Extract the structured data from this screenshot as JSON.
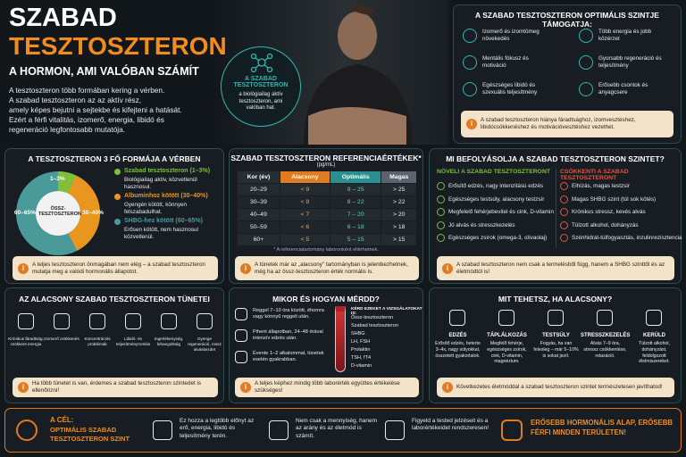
{
  "header": {
    "title1": "SZABAD",
    "title2": "TESZTOSZTERON",
    "subtitle": "A HORMON, AMI VALÓBAN SZÁMÍT",
    "intro": [
      "A tesztoszteron több formában kering a vérben.",
      "A szabad tesztoszteron az az aktív rész,",
      "amely képes bejutni a sejtekbe és kifejteni a hatását.",
      "Ezért a férfi vitalitás, izomerő, energia, libidó és",
      "regeneráció legfontosabb mutatója."
    ]
  },
  "badge": {
    "title": "A SZABAD TESZTOSZTERON",
    "text": "a biológiailag aktív tesztoszteron, ami valóban hat."
  },
  "support": {
    "title": "A SZABAD TESZTOSZTERON OPTIMÁLIS SZINTJE TÁMOGATJA:",
    "items": [
      "Izomerő és izomtömeg növekedés",
      "Több energia és jobb közérzet",
      "Mentális fókusz és motiváció",
      "Gyorsabb regeneráció és teljesítmény",
      "Egészséges libidó és szexuális teljesítmény",
      "Erősebb csontok és anyagcsere"
    ],
    "note": "A szabad tesztoszteron hiánya fáradtsághoz, izomvesztéshez, libidócsökkenéshez és motivációvesztéshez vezethet."
  },
  "forms": {
    "title": "A TESZTOSZTERON 3 FŐ FORMÁJA A VÉRBEN",
    "center": "ÖSSZ-TESZTOSZTERON",
    "segment_labels": [
      "1–3%",
      "30–40%",
      "60–65%"
    ],
    "legend": [
      {
        "name": "Szabad tesztoszteron (1–3%)",
        "text": "Biológiailag aktív, közvetlenül hasznosul."
      },
      {
        "name": "Albuminhoz kötött (30–40%)",
        "text": "Gyengén kötött, könnyen felszabadulhat."
      },
      {
        "name": "SHBG-hez kötött (60–65%)",
        "text": "Erősen kötött, nem hasznosul közvetlenül."
      }
    ],
    "note": "A teljes tesztoszteron önmagában nem elég – a szabad tesztoszteron mutatja meg a valódi hormonális állapotot."
  },
  "reference": {
    "title": "SZABAD TESZTOSZTERON REFERENCIAÉRTÉKEK*",
    "unit": "(pg/mL)",
    "headers": [
      "Kor (év)",
      "Alacsony",
      "Optimális",
      "Magas"
    ],
    "rows": [
      [
        "20–29",
        "< 9",
        "9 – 25",
        "> 25"
      ],
      [
        "30–39",
        "< 8",
        "8 – 22",
        "> 22"
      ],
      [
        "40–49",
        "< 7",
        "7 – 20",
        "> 20"
      ],
      [
        "50–59",
        "< 6",
        "6 – 18",
        "> 18"
      ],
      [
        "60+",
        "< 5",
        "5 – 15",
        "> 15"
      ]
    ],
    "footnote": "* A referenciatartomány laboronként eltérhetnek.",
    "note": "A tünetek már az „alacsony” tartományban is jelentkezhetnek, még ha az össz-tesztoszteron érték normális is."
  },
  "influence": {
    "title": "MI BEFOLYÁSOLJA A SZABAD TESZTOSZTERON SZINTET?",
    "increase_title": "NÖVELI A SZABAD TESZTOSZTERONT",
    "increase": [
      "Erősítő edzés, nagy intenzitású edzés",
      "Egészséges testsúly, alacsony testzsír",
      "Megfelelő fehérjebevitel és cink, D-vitamin",
      "Jó alvás és stresszkezelés",
      "Egészséges zsírok (omega-3, olívaolaj)"
    ],
    "decrease_title": "CSÖKKENTI A SZABAD TESZTOSZTERONT",
    "decrease": [
      "Elhízás, magas testzsír",
      "Magas SHBG szint (túl sok kötés)",
      "Krónikus stressz, kevés alvás",
      "Túlzott alkohol, dohányzás",
      "Szénhidrát-túlfogyasztás, inzulinrezisztencia"
    ],
    "note": "A szabad tesztoszteron nem csak a termelésből függ, hanem a SHBG szinttől és az életmódtól is!"
  },
  "symptoms": {
    "title": "AZ ALACSONY SZABAD TESZTOSZTERON TÜNETEI",
    "items": [
      "Krónikus fáradtság, csökkent energia",
      "Izomerő csökkenés",
      "Koncentrációs problémák",
      "Libidó- és teljesítményromlás",
      "Ingerlékenység, lehangoltság",
      "Gyenge regeneráció, rossz alváskezdet"
    ],
    "note": "Ha több tünetet is van, érdemes a szabad tesztoszteron szintedet is ellenőrizni!"
  },
  "measure": {
    "title": "MIKOR ÉS HOGYAN MÉRDD?",
    "items": [
      "Reggel 7–10 óra között, éhomra vagy könnyű reggeli után.",
      "Pihent állapotban, 24–48 órával intenzív edzés után.",
      "Évente 1–2 alkalommal, tünetek esetén gyakrabban."
    ],
    "tests_title": "KÉRD EZEKET A VIZSGÁLATOKAT IS:",
    "tests": [
      "Össz-tesztoszteron",
      "Szabad tesztoszteron",
      "SHBG",
      "LH, FSH",
      "Prolaktin",
      "TSH, fT4",
      "D-vitamin"
    ],
    "note": "A teljes képhez mindig több laborérték együttes értékelése szükséges!"
  },
  "actions": {
    "title": "MIT TEHETSZ, HA ALACSONY?",
    "items": [
      {
        "title": "EDZÉS",
        "text": "Erősítő edzés, heterte 3–4x, nagy súlyokkal, összetett gyakorlatok."
      },
      {
        "title": "TÁPLÁLKOZÁS",
        "text": "Megfelő fehérje, egészséges zsírok, cink, D-vitamin, magnézium."
      },
      {
        "title": "TESTSÚLY",
        "text": "Fogyás, ha van felesleg – már 5–10% is sokat javít."
      },
      {
        "title": "STRESSZKEZELÉS",
        "text": "Alvás 7–9 óra, stressz csökkentése, relaxáció."
      },
      {
        "title": "KERÜLD",
        "text": "Túlzott alkohol, dohányzást, feldolgozott élelmiszereket."
      }
    ],
    "note": "Következetes életmóddal a szabad tesztoszteron szintet természetesen javíthatod!"
  },
  "footer": {
    "goal_label": "A CÉL:",
    "goal": "OPTIMÁLIS SZABAD TESZTOSZTERON SZINT",
    "items": [
      "Ez hozza a legtöbb előnyt az erő, energia, libidó és teljesítmény terén.",
      "Nem csak a mennyiség, hanem az arány és az életmód is számít.",
      "Figyeld a tested jelzéseit és a laborértékeidet rendszeresen!"
    ],
    "slogan": "ERŐSEBB HORMONÁLIS ALAP, ERŐSEBB FÉRFI MINDEN TERÜLETEN!"
  }
}
